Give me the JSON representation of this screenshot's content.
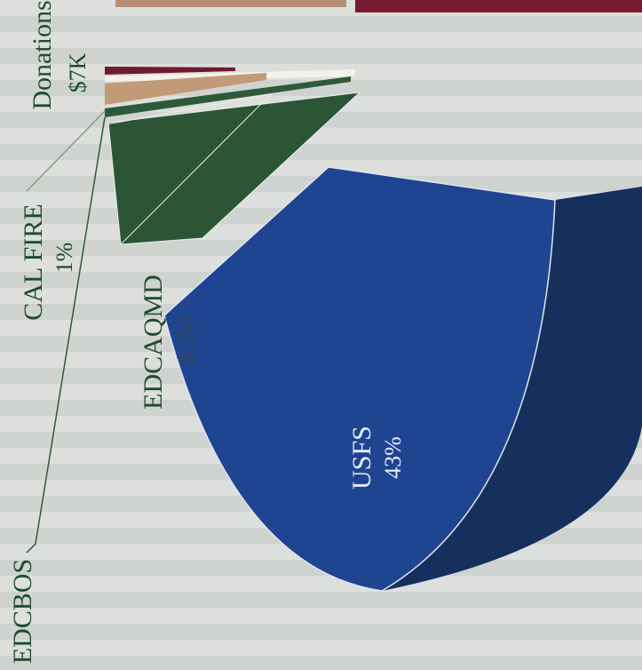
{
  "labels": [
    {
      "name": "Donations",
      "value": "$7K"
    },
    {
      "name": "CAL FIRE",
      "value": "1%"
    },
    {
      "name": "EDCAQMD",
      "value": "$ 2M"
    },
    {
      "name": "EDCBOS"
    },
    {
      "name": "USFS",
      "value": "43%"
    }
  ]
}
